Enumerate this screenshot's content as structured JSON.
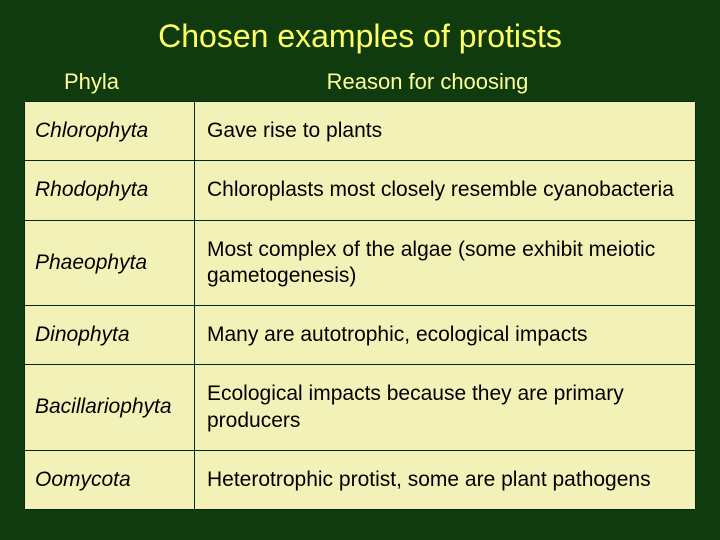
{
  "title": "Chosen examples of protists",
  "headers": {
    "phyla": "Phyla",
    "reason": "Reason for choosing"
  },
  "rows": [
    {
      "phyla": "Chlorophyta",
      "reason": "Gave rise to plants"
    },
    {
      "phyla": "Rhodophyta",
      "reason": "Chloroplasts most closely resemble cyanobacteria"
    },
    {
      "phyla": "Phaeophyta",
      "reason": "Most complex of the algae (some exhibit meiotic gametogenesis)"
    },
    {
      "phyla": "Dinophyta",
      "reason": "Many are autotrophic, ecological impacts"
    },
    {
      "phyla": "Bacillariophyta",
      "reason": "Ecological impacts because they are primary producers"
    },
    {
      "phyla": "Oomycota",
      "reason": "Heterotrophic protist, some are plant pathogens"
    }
  ],
  "colors": {
    "background": "#0f3b0f",
    "title": "#ffff66",
    "header_text": "#ffff99",
    "cell_background": "#f2f2b8",
    "cell_text": "#000000",
    "border": "#0a2a0a"
  },
  "fonts": {
    "title_size": 32,
    "header_size": 22,
    "cell_size": 21
  }
}
